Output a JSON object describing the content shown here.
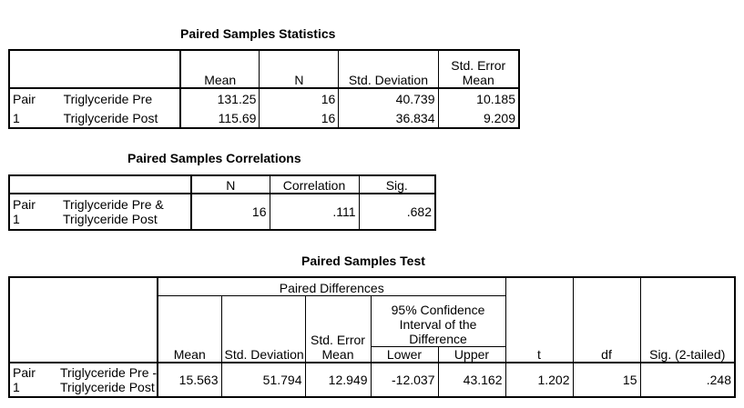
{
  "stats": {
    "title": "Paired Samples Statistics",
    "headers": {
      "mean": "Mean",
      "n": "N",
      "sd": "Std. Deviation",
      "se": "Std. Error Mean"
    },
    "pair_label": "Pair",
    "pair_number": "1",
    "rows": [
      {
        "label": "Triglyceride Pre",
        "mean": "131.25",
        "n": "16",
        "sd": "40.739",
        "se": "10.185"
      },
      {
        "label": "Triglyceride Post",
        "mean": "115.69",
        "n": "16",
        "sd": "36.834",
        "se": "9.209"
      }
    ]
  },
  "corr": {
    "title": "Paired Samples Correlations",
    "headers": {
      "n": "N",
      "correlation": "Correlation",
      "sig": "Sig."
    },
    "pair_label": "Pair",
    "pair_number": "1",
    "row": {
      "label_line1": "Triglyceride Pre &",
      "label_line2": "Triglyceride Post",
      "n": "16",
      "correlation": ".111",
      "sig": ".682"
    }
  },
  "test": {
    "title": "Paired Samples Test",
    "headers": {
      "paired_differences": "Paired Differences",
      "mean": "Mean",
      "sd": "Std. Deviation",
      "se_line1": "Std. Error",
      "se_line2": "Mean",
      "ci_line1": "95% Confidence",
      "ci_line2": "Interval of the",
      "ci_line3": "Difference",
      "lower": "Lower",
      "upper": "Upper",
      "t": "t",
      "df": "df",
      "sig": "Sig. (2-tailed)"
    },
    "pair_label": "Pair",
    "pair_number": "1",
    "row": {
      "label_line1": "Triglyceride Pre -",
      "label_line2": "Triglyceride Post",
      "mean": "15.563",
      "sd": "51.794",
      "se": "12.949",
      "lower": "-12.037",
      "upper": "43.162",
      "t": "1.202",
      "df": "15",
      "sig": ".248"
    }
  }
}
